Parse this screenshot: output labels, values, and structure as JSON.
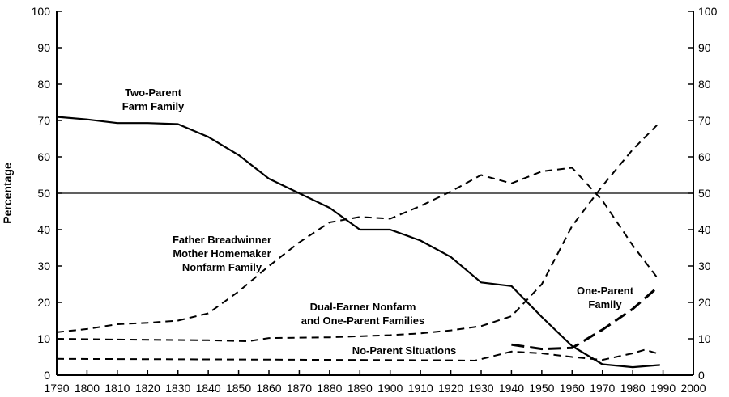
{
  "chart_data": {
    "type": "line",
    "ylabel": "Percentage",
    "xlabel": "",
    "xlim": [
      1790,
      2000
    ],
    "ylim": [
      0,
      100
    ],
    "x_ticks": [
      1790,
      1800,
      1810,
      1820,
      1830,
      1840,
      1850,
      1860,
      1870,
      1880,
      1890,
      1900,
      1910,
      1920,
      1930,
      1940,
      1950,
      1960,
      1970,
      1980,
      1990,
      2000
    ],
    "y_ticks": [
      0,
      10,
      20,
      30,
      40,
      50,
      60,
      70,
      80,
      90,
      100
    ],
    "grid": false,
    "reference_line": {
      "y": 50
    },
    "series": [
      {
        "style": "solid",
        "x": [
          1790,
          1800,
          1810,
          1820,
          1830,
          1840,
          1850,
          1860,
          1870,
          1880,
          1890,
          1900,
          1910,
          1920,
          1930,
          1940,
          1950,
          1960,
          1970,
          1980,
          1989
        ],
        "y": [
          71,
          70.3,
          69.3,
          69.3,
          69,
          65.5,
          60.5,
          54,
          50,
          46,
          40,
          40,
          37,
          32.5,
          25.5,
          24.5,
          16,
          8,
          3,
          2.2,
          2.8
        ]
      },
      {
        "style": "dashed",
        "x": [
          1790,
          1800,
          1810,
          1820,
          1830,
          1840,
          1850,
          1860,
          1870,
          1880,
          1890,
          1900,
          1910,
          1920,
          1930,
          1940,
          1950,
          1960,
          1970,
          1980,
          1988
        ],
        "y": [
          11.8,
          12.7,
          14,
          14.4,
          15,
          17,
          23,
          30,
          36.5,
          42,
          43.5,
          43,
          46.5,
          50.5,
          55,
          52.7,
          56,
          57,
          48,
          35.7,
          26.9
        ]
      },
      {
        "style": "dashed",
        "x": [
          1790,
          1810,
          1840,
          1853,
          1860,
          1880,
          1900,
          1910,
          1920,
          1930,
          1940,
          1950,
          1960,
          1970,
          1980,
          1988
        ],
        "y": [
          10,
          9.8,
          9.6,
          9.3,
          10.2,
          10.4,
          11,
          11.5,
          12.3,
          13.5,
          16.2,
          25,
          41,
          52,
          62,
          68.7
        ]
      },
      {
        "style": "longdash",
        "x": [
          1940,
          1950,
          1960,
          1970,
          1980,
          1988
        ],
        "y": [
          8.4,
          7.2,
          7.5,
          12.5,
          18.2,
          24
        ]
      },
      {
        "style": "dashed",
        "x": [
          1790,
          1920,
          1928,
          1940,
          1950,
          1960,
          1970,
          1980,
          1984,
          1988
        ],
        "y": [
          4.5,
          4.1,
          4,
          6.5,
          6,
          5,
          4.2,
          6,
          7,
          6
        ]
      }
    ],
    "annotations": [
      {
        "lines": [
          "Two-Parent",
          "Farm Family"
        ]
      },
      {
        "lines": [
          "Father Breadwinner",
          "Mother Homemaker",
          "Nonfarm Family"
        ]
      },
      {
        "lines": [
          "Dual-Earner Nonfarm",
          "and One-Parent Families"
        ]
      },
      {
        "lines": [
          "No-Parent Situations"
        ]
      },
      {
        "lines": [
          "One-Parent",
          "Family"
        ]
      }
    ]
  }
}
